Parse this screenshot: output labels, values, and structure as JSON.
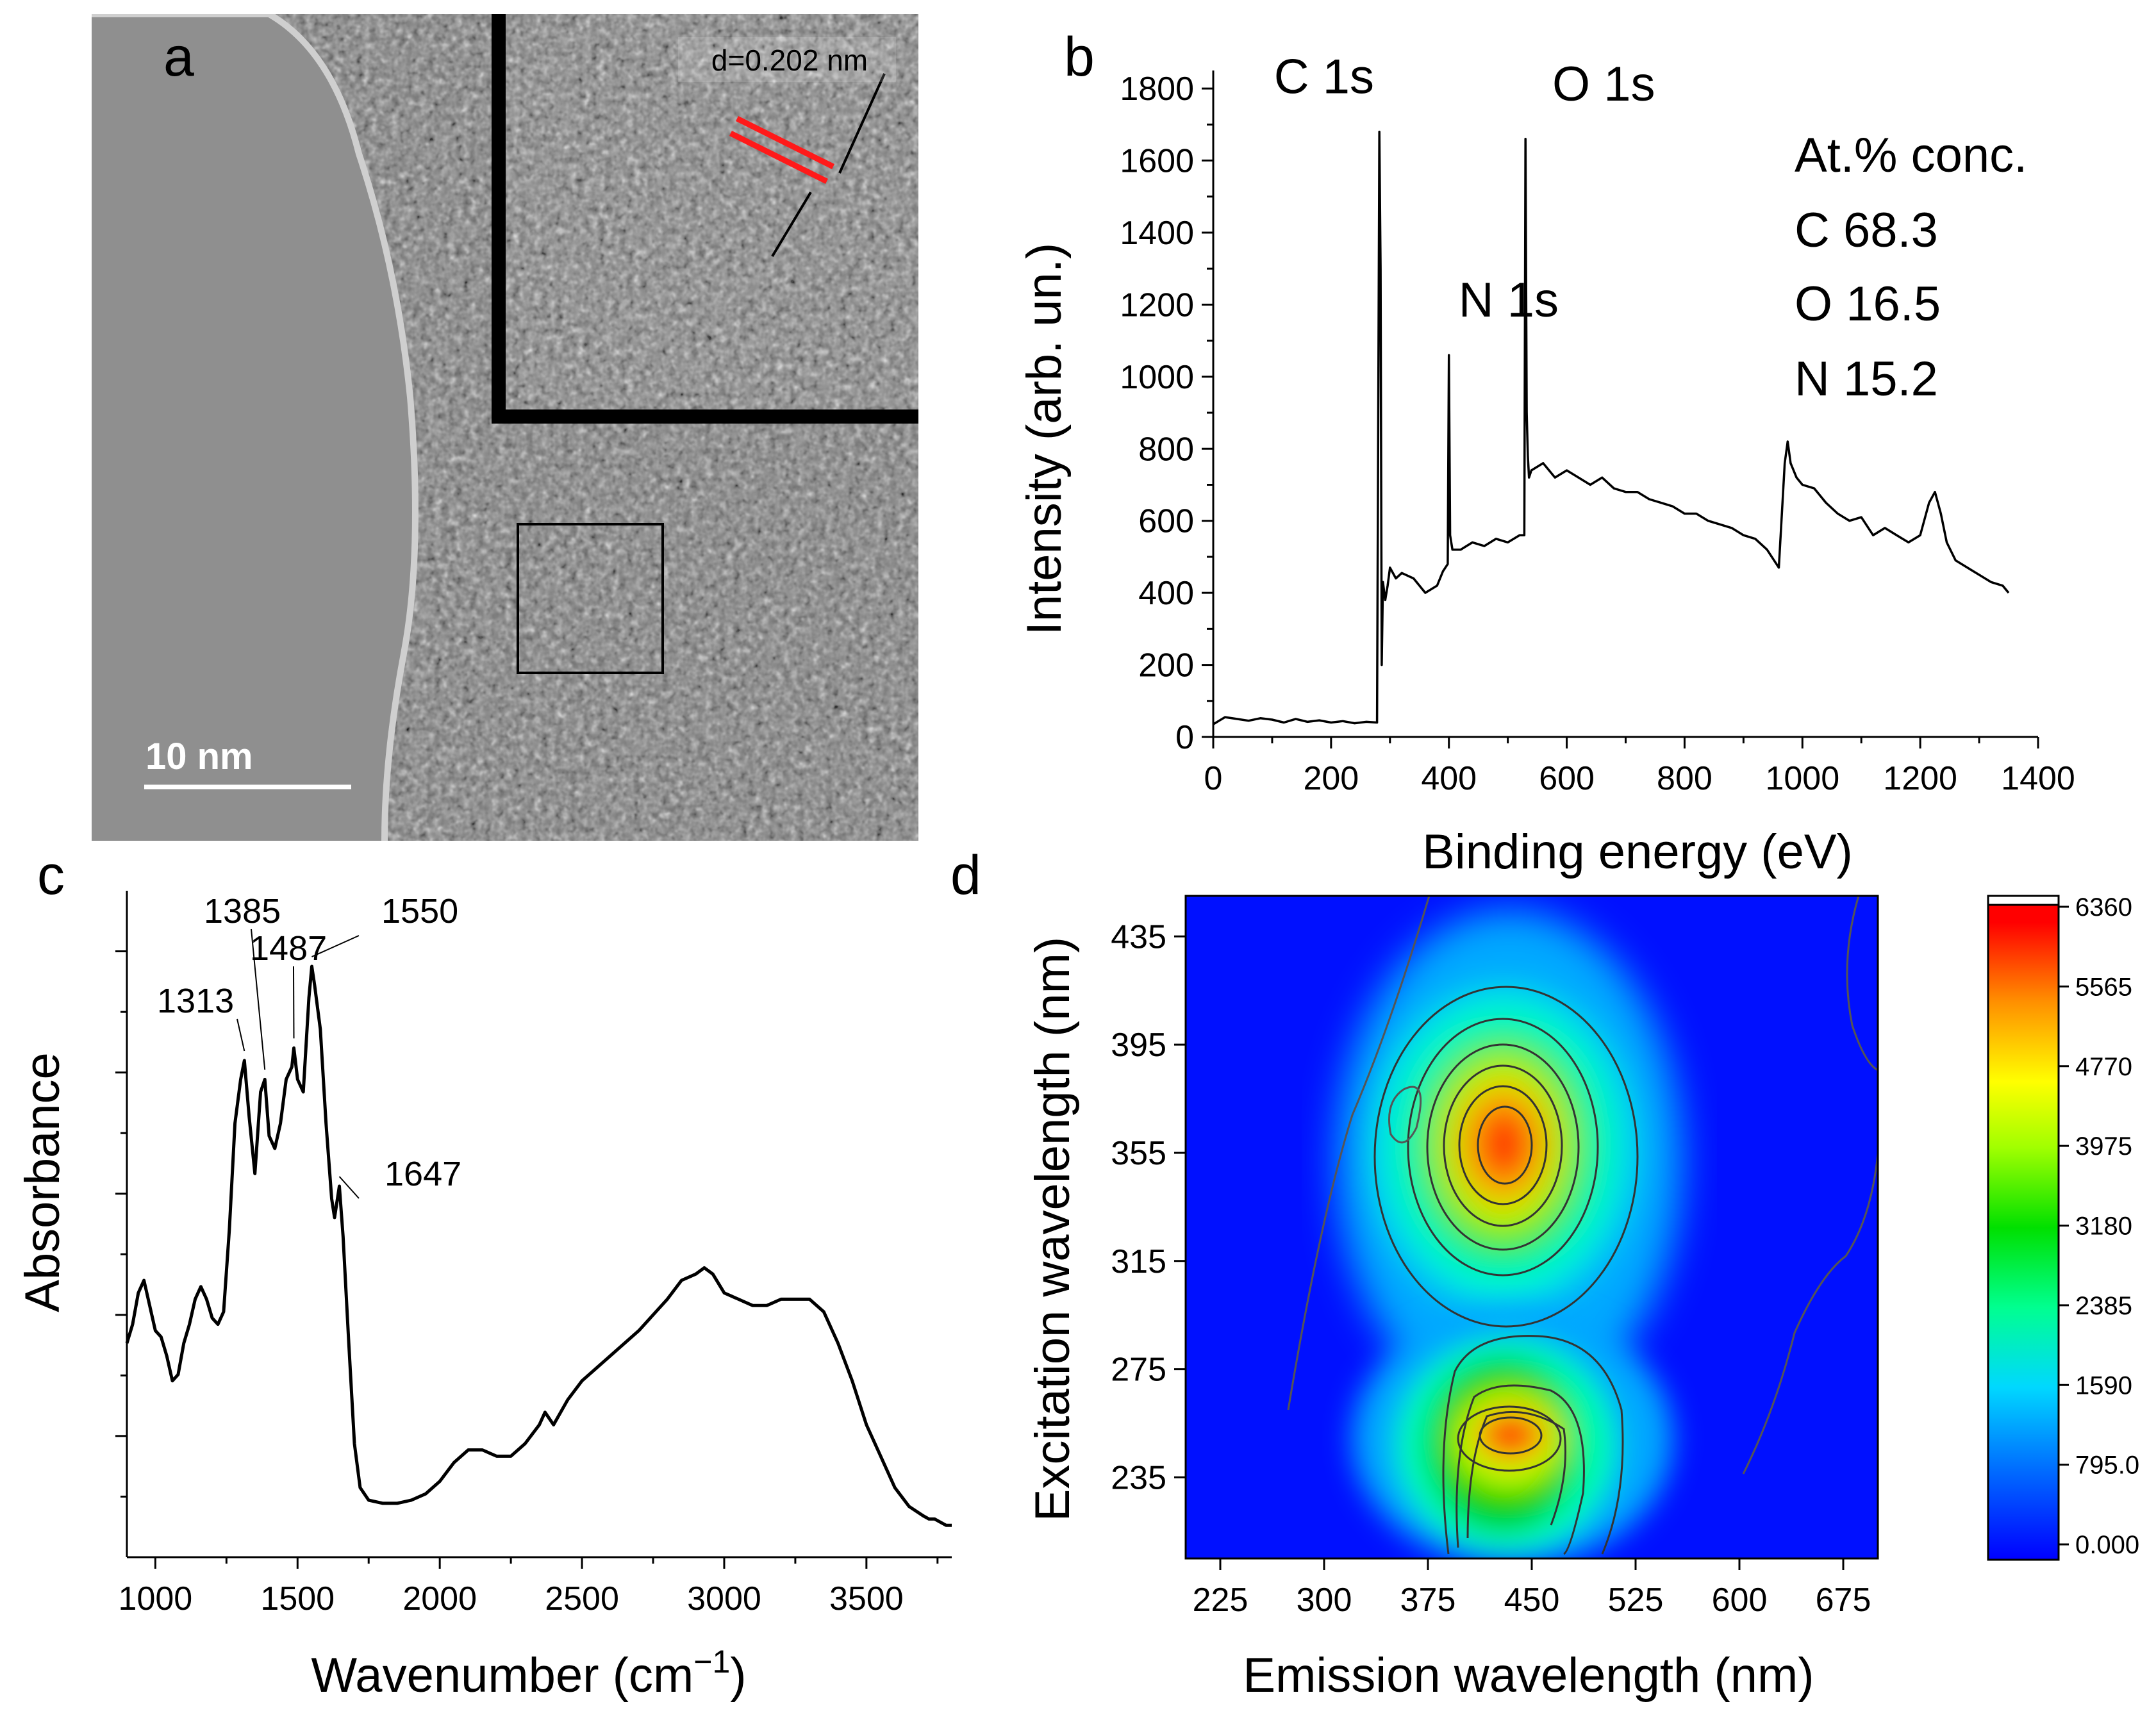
{
  "panel_labels": {
    "a": "a",
    "b": "b",
    "c": "c",
    "d": "d"
  },
  "panel_a": {
    "inset_label": "d=0.202 nm",
    "scale_bar_label": "10 nm"
  },
  "chart_data": [
    {
      "id": "xps",
      "type": "line",
      "title": "",
      "xlabel": "Binding energy (eV)",
      "ylabel": "Intensity (arb. un.)",
      "xlim": [
        0,
        1400
      ],
      "ylim": [
        0,
        1850
      ],
      "xticks": [
        0,
        200,
        400,
        600,
        800,
        1000,
        1200,
        1400
      ],
      "yticks": [
        0,
        200,
        400,
        600,
        800,
        1000,
        1200,
        1400,
        1600,
        1800
      ],
      "x": [
        0,
        20,
        40,
        60,
        80,
        100,
        120,
        140,
        160,
        180,
        200,
        220,
        240,
        260,
        278,
        282,
        284,
        286,
        288,
        292,
        296,
        300,
        310,
        320,
        340,
        360,
        380,
        390,
        398,
        400,
        402,
        406,
        420,
        440,
        460,
        480,
        500,
        520,
        528,
        530,
        532,
        534,
        536,
        540,
        560,
        580,
        600,
        620,
        640,
        660,
        680,
        700,
        720,
        740,
        760,
        780,
        800,
        820,
        840,
        860,
        880,
        900,
        920,
        940,
        960,
        970,
        975,
        980,
        990,
        1000,
        1020,
        1040,
        1060,
        1080,
        1100,
        1120,
        1140,
        1160,
        1180,
        1200,
        1215,
        1225,
        1235,
        1245,
        1260,
        1280,
        1300,
        1320,
        1340,
        1350
      ],
      "y": [
        35,
        55,
        50,
        45,
        52,
        48,
        40,
        50,
        42,
        46,
        40,
        44,
        38,
        42,
        40,
        1680,
        1300,
        200,
        430,
        380,
        420,
        470,
        440,
        455,
        440,
        400,
        420,
        460,
        480,
        1060,
        560,
        520,
        520,
        540,
        530,
        550,
        540,
        560,
        560,
        1660,
        900,
        780,
        720,
        740,
        760,
        720,
        740,
        720,
        700,
        720,
        690,
        680,
        680,
        660,
        650,
        640,
        620,
        620,
        600,
        590,
        580,
        560,
        550,
        520,
        470,
        760,
        820,
        760,
        720,
        700,
        690,
        650,
        620,
        600,
        610,
        560,
        580,
        560,
        540,
        560,
        650,
        680,
        620,
        540,
        490,
        470,
        450,
        430,
        420,
        400
      ],
      "peak_labels": [
        {
          "text": "C 1s",
          "x": 284,
          "y": 1680
        },
        {
          "text": "N 1s",
          "x": 400,
          "y": 1060
        },
        {
          "text": "O 1s",
          "x": 532,
          "y": 1660
        }
      ],
      "composition": {
        "title": "At.% conc.",
        "rows": [
          "C 68.3",
          "O 16.5",
          "N 15.2"
        ]
      }
    },
    {
      "id": "ftir",
      "type": "line",
      "title": "",
      "xlabel": "Wavenumber (cm",
      "xlabel_sup": "−1",
      "xlabel_close": ")",
      "ylabel": "Absorbance",
      "xlim": [
        900,
        3800
      ],
      "ylim": [
        0,
        1
      ],
      "xticks": [
        1000,
        1500,
        2000,
        2500,
        3000,
        3500
      ],
      "x": [
        900,
        920,
        940,
        960,
        980,
        1000,
        1020,
        1040,
        1060,
        1080,
        1100,
        1120,
        1140,
        1160,
        1180,
        1200,
        1220,
        1240,
        1260,
        1280,
        1300,
        1313,
        1330,
        1350,
        1370,
        1385,
        1400,
        1420,
        1440,
        1460,
        1480,
        1487,
        1500,
        1520,
        1540,
        1550,
        1560,
        1580,
        1600,
        1620,
        1630,
        1647,
        1660,
        1680,
        1700,
        1720,
        1750,
        1800,
        1850,
        1900,
        1950,
        2000,
        2050,
        2100,
        2150,
        2200,
        2250,
        2300,
        2350,
        2370,
        2400,
        2450,
        2500,
        2600,
        2700,
        2800,
        2850,
        2900,
        2930,
        2960,
        3000,
        3050,
        3100,
        3150,
        3200,
        3250,
        3300,
        3350,
        3400,
        3450,
        3500,
        3550,
        3600,
        3650,
        3700,
        3720,
        3740,
        3760,
        3780,
        3800
      ],
      "y": [
        0.3,
        0.33,
        0.38,
        0.4,
        0.36,
        0.32,
        0.31,
        0.28,
        0.24,
        0.25,
        0.3,
        0.33,
        0.37,
        0.39,
        0.37,
        0.34,
        0.33,
        0.35,
        0.48,
        0.65,
        0.72,
        0.75,
        0.66,
        0.57,
        0.7,
        0.72,
        0.63,
        0.61,
        0.65,
        0.72,
        0.74,
        0.77,
        0.72,
        0.7,
        0.85,
        0.9,
        0.87,
        0.8,
        0.65,
        0.53,
        0.5,
        0.55,
        0.47,
        0.3,
        0.14,
        0.07,
        0.05,
        0.045,
        0.045,
        0.05,
        0.06,
        0.08,
        0.11,
        0.13,
        0.13,
        0.12,
        0.12,
        0.14,
        0.17,
        0.19,
        0.17,
        0.21,
        0.24,
        0.28,
        0.32,
        0.37,
        0.4,
        0.41,
        0.42,
        0.41,
        0.38,
        0.37,
        0.36,
        0.36,
        0.37,
        0.37,
        0.37,
        0.35,
        0.3,
        0.24,
        0.17,
        0.12,
        0.07,
        0.04,
        0.025,
        0.02,
        0.02,
        0.015,
        0.01,
        0.01
      ],
      "peak_labels": [
        {
          "text": "1313",
          "x": 1313
        },
        {
          "text": "1385",
          "x": 1385
        },
        {
          "text": "1487",
          "x": 1487
        },
        {
          "text": "1550",
          "x": 1550
        },
        {
          "text": "1647",
          "x": 1647
        }
      ]
    },
    {
      "id": "eem",
      "type": "heatmap",
      "title": "",
      "xlabel": "Emission wavelength (nm)",
      "ylabel": "Excitation wavelength (nm)",
      "xlim": [
        200,
        700
      ],
      "ylim": [
        205,
        450
      ],
      "xticks": [
        225,
        300,
        375,
        450,
        525,
        600,
        675
      ],
      "yticks": [
        235,
        275,
        315,
        355,
        395,
        435
      ],
      "peaks": [
        {
          "em": 431,
          "ex": 355,
          "intensity": 6360
        },
        {
          "em": 434,
          "ex": 247,
          "intensity": 5000
        }
      ],
      "colorbar": {
        "min": 0,
        "max": 6360,
        "tick_labels": [
          "6360",
          "5565",
          "4770",
          "3975",
          "3180",
          "2385",
          "1590",
          "795.0",
          "0.000"
        ],
        "colors": [
          "#0000ff",
          "#0080ff",
          "#00d0ff",
          "#00ff80",
          "#00e000",
          "#c0ff00",
          "#ffff00",
          "#ff8000",
          "#ff0000"
        ]
      }
    }
  ]
}
